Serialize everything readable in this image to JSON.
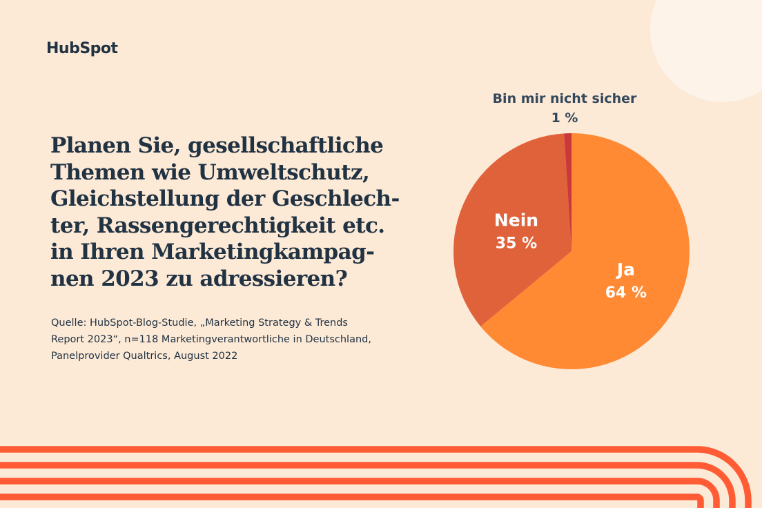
{
  "brand": {
    "logo_text": "HubSpot"
  },
  "title_lines": [
    "Planen Sie, gesellschaftliche",
    "Themen wie Umweltschutz,",
    "Gleichstellung der Geschlech-",
    "ter, Rassengerechtigkeit etc.",
    "in Ihren Marketingkampag-",
    "nen 2023 zu adressieren?"
  ],
  "source_lines": [
    "Quelle: HubSpot-Blog-Studie, „Marketing Strategy & Trends",
    "Report 2023“, n=118 Marketingverantwortliche in Deutschland,",
    "Panelprovider Qualtrics, August 2022"
  ],
  "colors": {
    "background": "#fce9d6",
    "navy": "#213343",
    "slate_label": "#33475b",
    "ja": "#ff8a33",
    "nein": "#e0623a",
    "unsure": "#c9383a",
    "stripe": "#ff5c35"
  },
  "chart_data": {
    "type": "pie",
    "title": "",
    "slices": [
      {
        "label": "Ja",
        "value": 64,
        "value_label": "64 %",
        "color": "#ff8a33"
      },
      {
        "label": "Nein",
        "value": 35,
        "value_label": "35 %",
        "color": "#e0623a"
      },
      {
        "label": "Bin mir nicht sicher",
        "value": 1,
        "value_label": "1 %",
        "color": "#c9383a"
      }
    ]
  }
}
